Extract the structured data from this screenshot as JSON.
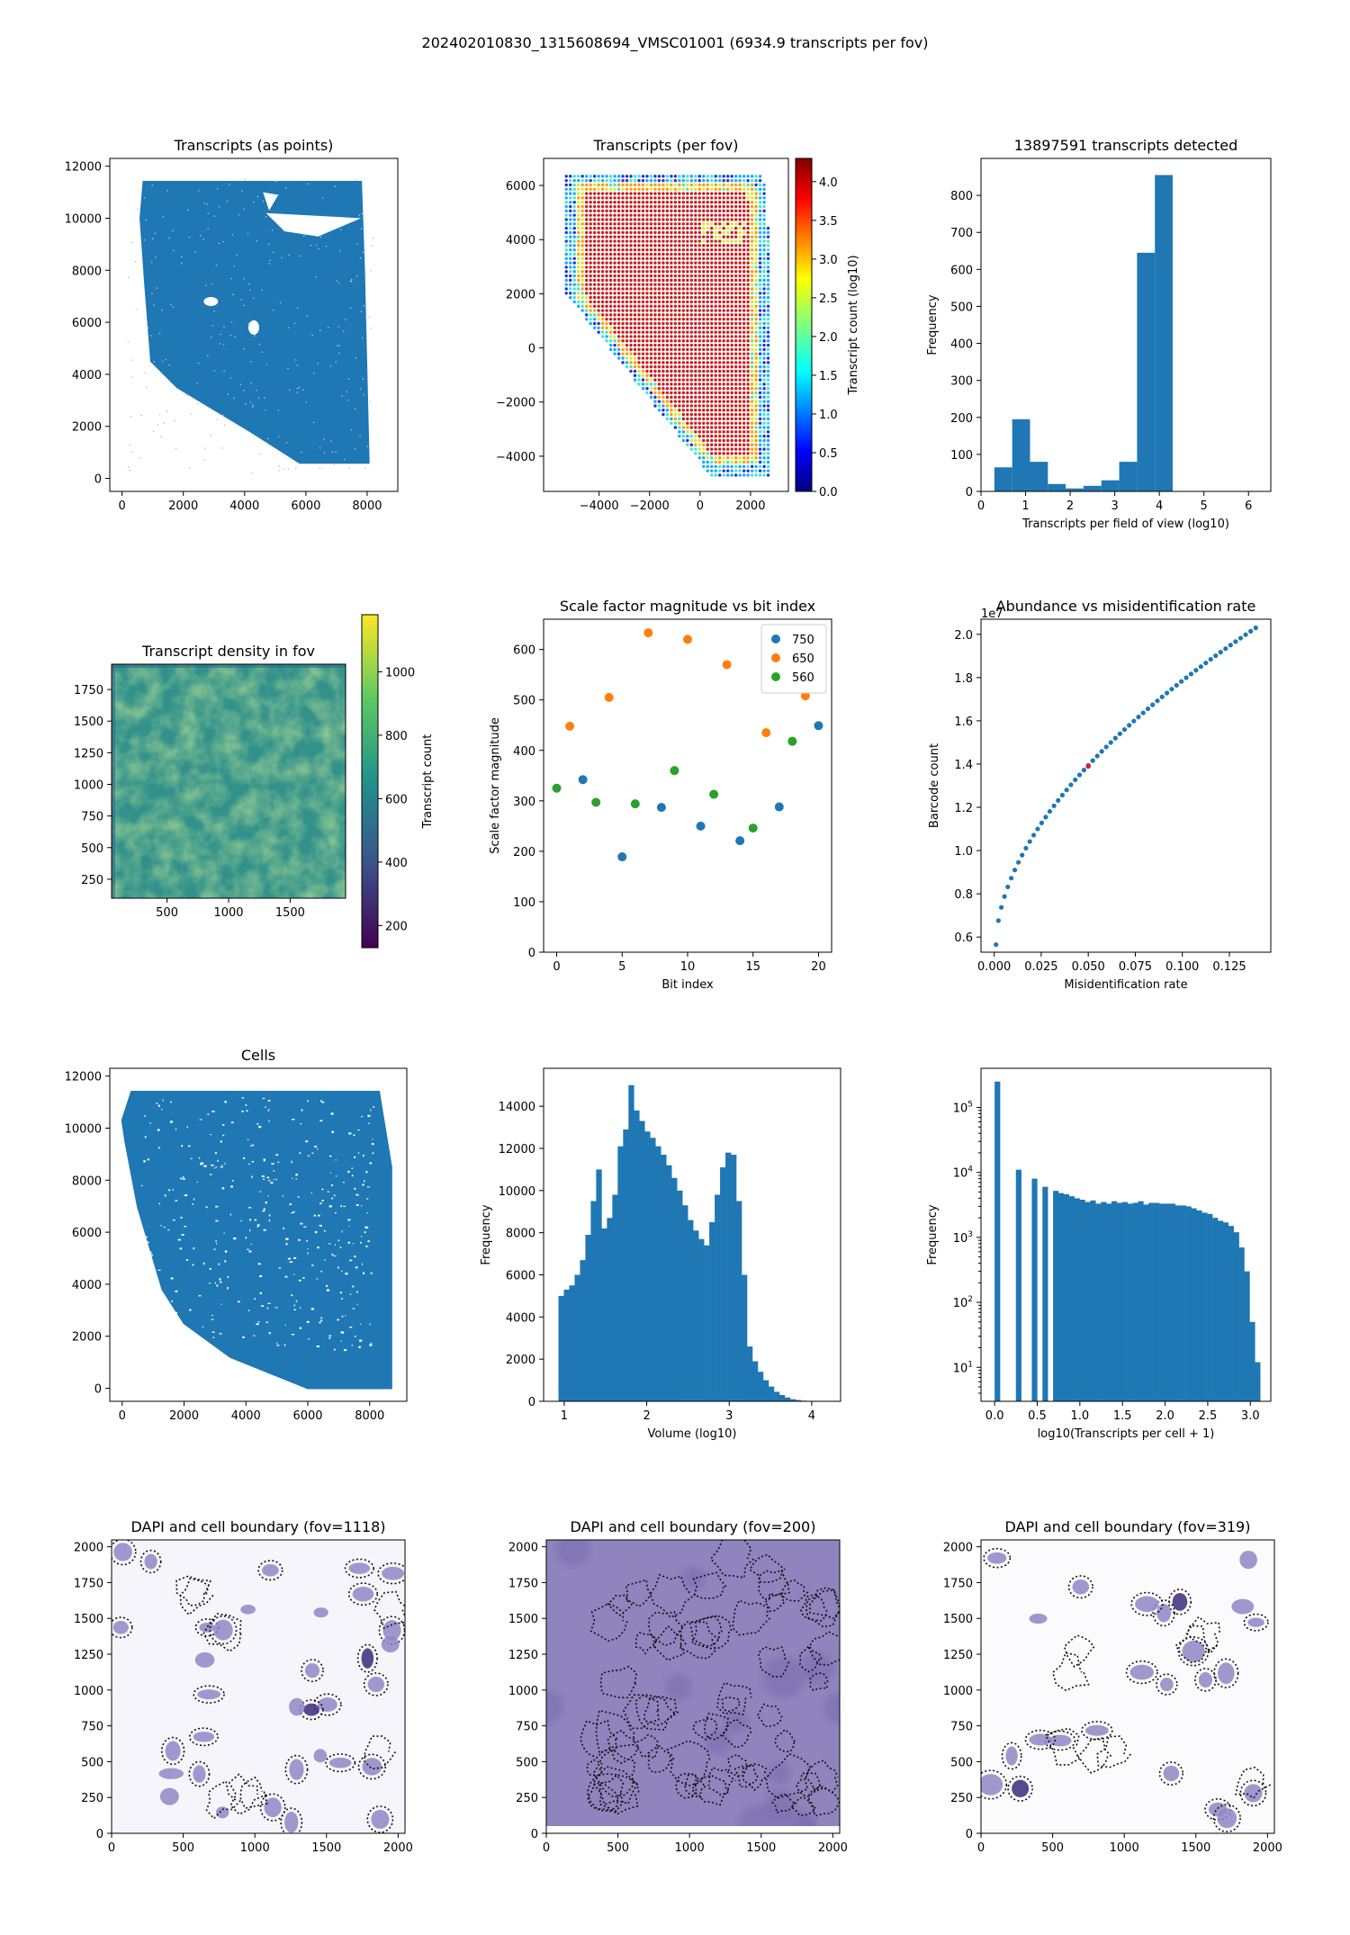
{
  "suptitle": "202402010830_1315608694_VMSC01001 (6934.9 transcripts per fov)",
  "colors": {
    "blue": "#1f77b4",
    "orange": "#ff7f0e",
    "green": "#2ca02c",
    "viridis_mid": "#3a9a8a",
    "dapi_purple": "#5b4a9b"
  },
  "chart_data": [
    {
      "id": "transcripts_points",
      "type": "scatter",
      "title": "Transcripts (as points)",
      "xlim": [
        -400,
        9000
      ],
      "ylim": [
        -500,
        12300
      ],
      "xticks": [
        0,
        2000,
        4000,
        6000,
        8000
      ],
      "yticks": [
        0,
        2000,
        4000,
        6000,
        8000,
        10000,
        12000
      ],
      "region_outline": [
        [
          700,
          11400
        ],
        [
          7800,
          11400
        ],
        [
          7900,
          8000
        ],
        [
          8050,
          600
        ],
        [
          5800,
          600
        ],
        [
          4200,
          1800
        ],
        [
          1800,
          3500
        ],
        [
          950,
          4500
        ],
        [
          750,
          7500
        ],
        [
          600,
          10000
        ]
      ]
    },
    {
      "id": "transcripts_per_fov",
      "type": "heatmap",
      "title": "Transcripts (per fov)",
      "xlim": [
        -6200,
        3500
      ],
      "ylim": [
        -5300,
        7000
      ],
      "xticks": [
        -4000,
        -2000,
        0,
        2000
      ],
      "yticks": [
        -4000,
        -2000,
        0,
        2000,
        4000,
        6000
      ],
      "colorbar": {
        "label": "Transcript count (log10)",
        "ticks": [
          0.0,
          0.5,
          1.0,
          1.5,
          2.0,
          2.5,
          3.0,
          3.5,
          4.0
        ],
        "range": [
          0,
          4.3
        ],
        "colormap": "jet"
      }
    },
    {
      "id": "transcripts_hist",
      "type": "bar",
      "title": "13897591 transcripts detected",
      "xlabel": "Transcripts per field of view (log10)",
      "ylabel": "Frequency",
      "xlim": [
        0,
        6.5
      ],
      "ylim": [
        0,
        900
      ],
      "xticks": [
        0,
        1,
        2,
        3,
        4,
        5,
        6
      ],
      "yticks": [
        0,
        100,
        200,
        300,
        400,
        500,
        600,
        700,
        800
      ],
      "bin_edges": [
        0.3,
        0.7,
        1.1,
        1.5,
        1.9,
        2.3,
        2.7,
        3.1,
        3.5,
        3.9,
        4.3
      ],
      "values": [
        65,
        195,
        80,
        20,
        8,
        15,
        30,
        80,
        645,
        855
      ]
    },
    {
      "id": "density_fov",
      "type": "heatmap",
      "title": "Transcript density in fov",
      "xlim": [
        50,
        1950
      ],
      "ylim": [
        100,
        1950
      ],
      "xticks": [
        500,
        1000,
        1500
      ],
      "yticks": [
        250,
        500,
        750,
        1000,
        1250,
        1500,
        1750
      ],
      "colorbar": {
        "label": "Transcript count",
        "ticks": [
          200,
          400,
          600,
          800,
          1000
        ],
        "range": [
          130,
          1180
        ],
        "colormap": "viridis"
      }
    },
    {
      "id": "scale_factor",
      "type": "scatter",
      "title": "Scale factor magnitude vs bit index",
      "xlabel": "Bit index",
      "ylabel": "Scale factor magnitude",
      "xlim": [
        -1,
        21
      ],
      "ylim": [
        0,
        660
      ],
      "xticks": [
        0,
        5,
        10,
        15,
        20
      ],
      "yticks": [
        0,
        100,
        200,
        300,
        400,
        500,
        600
      ],
      "legend_position": "top-right",
      "series": [
        {
          "name": "750",
          "color": "#1f77b4",
          "points": [
            [
              2,
              342
            ],
            [
              5,
              189
            ],
            [
              8,
              287
            ],
            [
              11,
              250
            ],
            [
              14,
              221
            ],
            [
              17,
              288
            ],
            [
              20,
              449
            ]
          ]
        },
        {
          "name": "650",
          "color": "#ff7f0e",
          "points": [
            [
              1,
              448
            ],
            [
              4,
              505
            ],
            [
              7,
              633
            ],
            [
              10,
              620
            ],
            [
              13,
              570
            ],
            [
              16,
              435
            ],
            [
              19,
              508
            ]
          ]
        },
        {
          "name": "560",
          "color": "#2ca02c",
          "points": [
            [
              0,
              325
            ],
            [
              3,
              297
            ],
            [
              6,
              294
            ],
            [
              9,
              360
            ],
            [
              12,
              313
            ],
            [
              15,
              246
            ],
            [
              18,
              418
            ]
          ]
        }
      ]
    },
    {
      "id": "abundance",
      "type": "scatter",
      "title": "Abundance vs misidentification rate",
      "xlabel": "Misidentification rate",
      "ylabel": "Barcode count",
      "offset_label": "1e7",
      "xlim": [
        -0.007,
        0.147
      ],
      "ylim": [
        0.53,
        2.07
      ],
      "xticks": [
        0.0,
        0.025,
        0.05,
        0.075,
        0.1,
        0.125
      ],
      "yticks": [
        0.6,
        0.8,
        1.0,
        1.2,
        1.4,
        1.6,
        1.8,
        2.0
      ],
      "xtick_labels": [
        "0.000",
        "0.025",
        "0.050",
        "0.075",
        "0.100",
        "0.125"
      ],
      "ytick_labels": [
        "0.6",
        "0.8",
        "1.0",
        "1.2",
        "1.4",
        "1.6",
        "1.8",
        "2.0"
      ],
      "curve_start": [
        0.001,
        0.565
      ],
      "curve_end": [
        0.139,
        2.03
      ],
      "points_count": 60
    },
    {
      "id": "cells",
      "type": "scatter",
      "title": "Cells",
      "xlim": [
        -400,
        9200
      ],
      "ylim": [
        -500,
        12300
      ],
      "xticks": [
        0,
        2000,
        4000,
        6000,
        8000
      ],
      "yticks": [
        0,
        2000,
        4000,
        6000,
        8000,
        10000,
        12000
      ],
      "region_outline": [
        [
          0,
          10300
        ],
        [
          300,
          11400
        ],
        [
          8300,
          11400
        ],
        [
          8700,
          8500
        ],
        [
          8700,
          0
        ],
        [
          6000,
          0
        ],
        [
          3500,
          1200
        ],
        [
          2000,
          2500
        ],
        [
          1300,
          3800
        ],
        [
          500,
          7000
        ],
        [
          100,
          9500
        ]
      ]
    },
    {
      "id": "volume_hist",
      "type": "bar",
      "title": "",
      "xlabel": "Volume (log10)",
      "ylabel": "Frequency",
      "xlim": [
        0.75,
        4.35
      ],
      "ylim": [
        0,
        15800
      ],
      "xticks": [
        1,
        2,
        3,
        4
      ],
      "yticks": [
        0,
        2000,
        4000,
        6000,
        8000,
        10000,
        12000,
        14000
      ],
      "bin_start": 0.93,
      "bin_width": 0.0653,
      "values": [
        5000,
        5300,
        5500,
        6000,
        6700,
        7900,
        9500,
        11000,
        8200,
        8700,
        9800,
        12100,
        12900,
        15000,
        13800,
        13300,
        12800,
        12500,
        12100,
        11700,
        11200,
        10600,
        10000,
        9300,
        8600,
        8100,
        7700,
        7400,
        8500,
        9800,
        11100,
        11800,
        11700,
        9500,
        6000,
        2600,
        1900,
        1400,
        1000,
        700,
        450,
        300,
        180,
        100,
        60,
        30
      ]
    },
    {
      "id": "transcripts_per_cell_hist",
      "type": "bar",
      "title": "",
      "xlabel": "log10(Transcripts per cell + 1)",
      "ylabel": "Frequency",
      "yscale": "log",
      "xlim": [
        -0.16,
        3.24
      ],
      "ylim": [
        3,
        400000
      ],
      "xticks": [
        0.0,
        0.5,
        1.0,
        1.5,
        2.0,
        2.5,
        3.0
      ],
      "xtick_labels": [
        "0.0",
        "0.5",
        "1.0",
        "1.5",
        "2.0",
        "2.5",
        "3.0"
      ],
      "ytick_exponents": [
        1,
        2,
        3,
        4,
        5
      ],
      "bin_start": 0,
      "bin_width": 0.0623,
      "values": [
        250000,
        0,
        0,
        0,
        11000,
        0,
        0,
        8000,
        0,
        6000,
        0,
        5200,
        4800,
        4600,
        4300,
        4000,
        3800,
        3500,
        3700,
        3300,
        3500,
        3300,
        3600,
        3400,
        3500,
        3300,
        3400,
        3600,
        3200,
        3400,
        3400,
        3300,
        3300,
        3300,
        3100,
        3100,
        3000,
        2800,
        2600,
        2400,
        2300,
        2000,
        1800,
        1700,
        1500,
        1200,
        700,
        300,
        50,
        12
      ]
    },
    {
      "id": "dapi_1118",
      "type": "heatmap",
      "title": "DAPI and cell boundary (fov=1118)",
      "xlim": [
        0,
        2048
      ],
      "ylim": [
        0,
        2048
      ],
      "xticks": [
        0,
        500,
        1000,
        1500,
        2000
      ],
      "yticks": [
        0,
        250,
        500,
        750,
        1000,
        1250,
        1500,
        1750,
        2000
      ],
      "background": "#f6f5fb"
    },
    {
      "id": "dapi_200",
      "type": "heatmap",
      "title": "DAPI and cell boundary (fov=200)",
      "xlim": [
        0,
        2048
      ],
      "ylim": [
        0,
        2048
      ],
      "xticks": [
        0,
        500,
        1000,
        1500,
        2000
      ],
      "yticks": [
        0,
        250,
        500,
        750,
        1000,
        1250,
        1500,
        1750,
        2000
      ],
      "background": "#8f84bd"
    },
    {
      "id": "dapi_319",
      "type": "heatmap",
      "title": "DAPI and cell boundary (fov=319)",
      "xlim": [
        0,
        2048
      ],
      "ylim": [
        0,
        2048
      ],
      "xticks": [
        0,
        500,
        1000,
        1500,
        2000
      ],
      "yticks": [
        0,
        250,
        500,
        750,
        1000,
        1250,
        1500,
        1750,
        2000
      ],
      "background": "#fbfbfd"
    }
  ]
}
